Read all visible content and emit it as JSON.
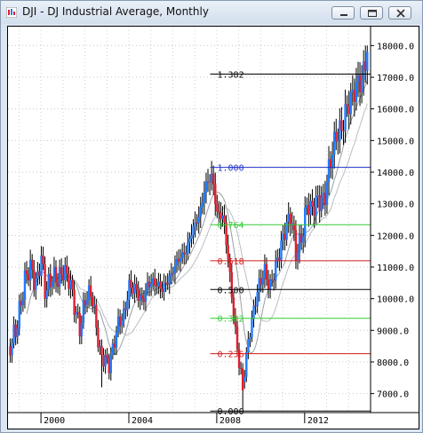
{
  "window": {
    "title": "DJI - DJ Industrial Average, Monthly"
  },
  "controls": {
    "minimize": "minimize",
    "maximize": "maximize",
    "close": "close"
  },
  "colors": {
    "up": "#1e7bff",
    "down": "#e01e2e",
    "wick": "#000000",
    "ma_fast": "#9aa0a6",
    "ma_slow": "#b9bec4"
  },
  "chart_data": {
    "type": "candlestick",
    "title": "DJI - DJ Industrial Average, Monthly",
    "y_ticks": [
      "18000.0",
      "17000.0",
      "16000.0",
      "15000.0",
      "14000.0",
      "13000.0",
      "12000.0",
      "11000.0",
      "10000.0",
      "9000.0",
      "8000.0",
      "7000.0"
    ],
    "y_tick_values": [
      18000,
      17000,
      16000,
      15000,
      14000,
      13000,
      12000,
      11000,
      10000,
      9000,
      8000,
      7000
    ],
    "x_ticks": [
      "2000",
      "2004",
      "2008",
      "2012"
    ],
    "x_tick_values": [
      2000,
      2004,
      2008,
      2012
    ],
    "ylim": [
      6400,
      18600
    ],
    "xlim": [
      1998.5,
      2015.0
    ],
    "fibonacci": [
      {
        "label": "1.382",
        "value": 17100,
        "color": "#000000"
      },
      {
        "label": "1.000",
        "value": 14150,
        "color": "#1f2fc8"
      },
      {
        "label": "0.764",
        "value": 12340,
        "color": "#33cc33"
      },
      {
        "label": "0.618",
        "value": 11200,
        "color": "#d01c1c"
      },
      {
        "label": "0.500",
        "value": 10290,
        "color": "#000000"
      },
      {
        "label": "0.382",
        "value": 9380,
        "color": "#33cc33"
      },
      {
        "label": "0.236",
        "value": 8260,
        "color": "#d01c1c"
      },
      {
        "label": "0.000",
        "value": 6450,
        "color": "#000000"
      }
    ],
    "fib_x_start": 2007.7,
    "series_anchors": [
      [
        1998.6,
        8500
      ],
      [
        1998.9,
        9100
      ],
      [
        1999.3,
        10700
      ],
      [
        1999.5,
        11000
      ],
      [
        1999.8,
        10400
      ],
      [
        2000.0,
        11400
      ],
      [
        2000.2,
        10200
      ],
      [
        2000.5,
        10700
      ],
      [
        2000.8,
        10600
      ],
      [
        2001.0,
        10900
      ],
      [
        2001.3,
        10600
      ],
      [
        2001.6,
        9500
      ],
      [
        2001.8,
        9000
      ],
      [
        2002.0,
        10000
      ],
      [
        2002.3,
        10200
      ],
      [
        2002.5,
        9200
      ],
      [
        2002.7,
        8200
      ],
      [
        2002.9,
        8100
      ],
      [
        2003.1,
        7900
      ],
      [
        2003.3,
        8500
      ],
      [
        2003.5,
        9200
      ],
      [
        2003.8,
        9500
      ],
      [
        2004.0,
        10400
      ],
      [
        2004.3,
        10300
      ],
      [
        2004.6,
        9900
      ],
      [
        2004.9,
        10500
      ],
      [
        2005.2,
        10500
      ],
      [
        2005.5,
        10300
      ],
      [
        2005.9,
        10700
      ],
      [
        2006.2,
        11200
      ],
      [
        2006.6,
        11500
      ],
      [
        2006.9,
        12200
      ],
      [
        2007.2,
        12600
      ],
      [
        2007.5,
        13600
      ],
      [
        2007.8,
        13900
      ],
      [
        2008.0,
        12700
      ],
      [
        2008.3,
        12600
      ],
      [
        2008.5,
        11400
      ],
      [
        2008.8,
        9300
      ],
      [
        2009.0,
        8000
      ],
      [
        2009.2,
        7300
      ],
      [
        2009.4,
        8500
      ],
      [
        2009.7,
        9700
      ],
      [
        2009.9,
        10400
      ],
      [
        2010.2,
        10900
      ],
      [
        2010.4,
        10300
      ],
      [
        2010.6,
        10800
      ],
      [
        2010.9,
        11600
      ],
      [
        2011.2,
        12400
      ],
      [
        2011.4,
        12600
      ],
      [
        2011.6,
        11400
      ],
      [
        2011.9,
        12000
      ],
      [
        2012.1,
        13000
      ],
      [
        2012.3,
        12800
      ],
      [
        2012.6,
        13100
      ],
      [
        2012.9,
        13100
      ],
      [
        2013.1,
        14100
      ],
      [
        2013.4,
        15100
      ],
      [
        2013.7,
        15400
      ],
      [
        2013.9,
        16000
      ],
      [
        2014.1,
        16300
      ],
      [
        2014.4,
        16800
      ],
      [
        2014.6,
        16900
      ],
      [
        2014.75,
        17400
      ],
      [
        2014.85,
        17900
      ]
    ]
  }
}
